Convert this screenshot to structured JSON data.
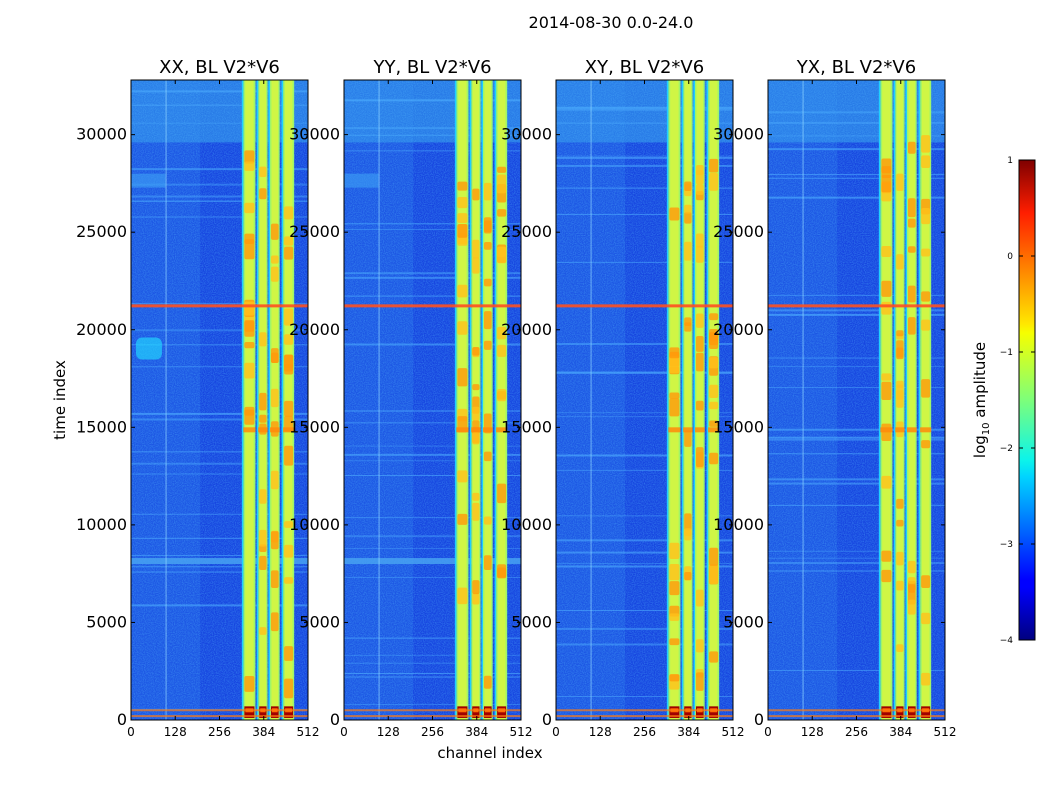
{
  "chart_data": {
    "type": "heatmap",
    "suptitle": "2014-08-30 0.0-24.0",
    "xlabel": "channel index",
    "ylabel": "time index",
    "xlim": [
      0,
      512
    ],
    "ylim": [
      0,
      32800
    ],
    "xticks": [
      0,
      128,
      256,
      384,
      512
    ],
    "xtick_labels": [
      "0",
      "128",
      "256",
      "384",
      "512"
    ],
    "yticks": [
      0,
      5000,
      10000,
      15000,
      20000,
      25000,
      30000
    ],
    "ytick_labels": [
      "0",
      "5000",
      "10000",
      "15000",
      "20000",
      "25000",
      "30000"
    ],
    "panels": [
      {
        "title": "XX, BL V2*V6",
        "polarization": "XX"
      },
      {
        "title": "YY, BL V2*V6",
        "polarization": "YY"
      },
      {
        "title": "XY, BL V2*V6",
        "polarization": "XY"
      },
      {
        "title": "YX, BL V2*V6",
        "polarization": "YX"
      }
    ],
    "colorbar": {
      "label": "log10 amplitude",
      "label_main": "log",
      "label_sub": "10",
      "label_rest": " amplitude",
      "range": [
        -4,
        1
      ],
      "ticks": [
        1,
        0,
        -1,
        -2,
        -3,
        -4
      ],
      "tick_labels": [
        "1",
        "0",
        "−1",
        "−2",
        "−3",
        "−4"
      ],
      "colormap": "jet"
    },
    "features": {
      "bright_channel_bands": [
        [
          325,
          360
        ],
        [
          368,
          395
        ],
        [
          402,
          430
        ],
        [
          440,
          472
        ]
      ],
      "rfi_time_rows": [
        21250,
        500,
        200
      ]
    }
  }
}
